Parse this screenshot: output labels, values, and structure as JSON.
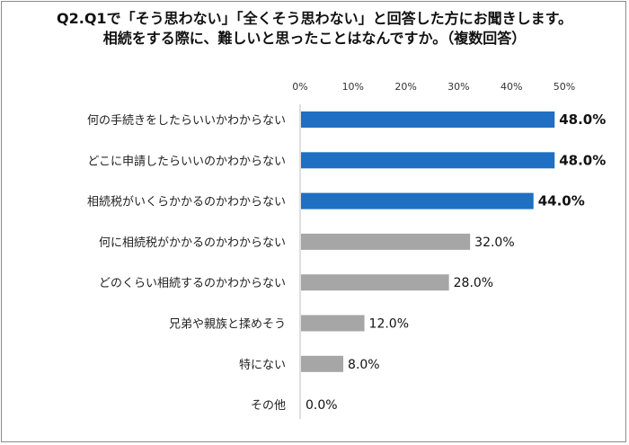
{
  "chart_data": {
    "type": "bar",
    "orientation": "horizontal",
    "title_line1": "Q2.Q1で「そう思わない」「全くそう思わない」と回答した方にお聞きします。",
    "title_line2": "相続をする際に、難しいと思ったことはなんですか。（複数回答）",
    "categories": [
      "何の手続きをしたらいいかわからない",
      "どこに申請したらいいのかわからない",
      "相続税がいくらかかるのかわからない",
      "何に相続税がかかるのかわからない",
      "どのくらい相続するのかわからない",
      "兄弟や親族と揉めそう",
      "特にない",
      "その他"
    ],
    "values": [
      48.0,
      48.0,
      44.0,
      32.0,
      28.0,
      12.0,
      8.0,
      0.0
    ],
    "value_labels": [
      "48.0%",
      "48.0%",
      "44.0%",
      "32.0%",
      "28.0%",
      "12.0%",
      "8.0%",
      "0.0%"
    ],
    "highlighted": [
      true,
      true,
      true,
      false,
      false,
      false,
      false,
      false
    ],
    "x_ticks": [
      0,
      10,
      20,
      30,
      40,
      50
    ],
    "x_tick_labels": [
      "0%",
      "10%",
      "20%",
      "30%",
      "40%",
      "50%"
    ],
    "xlim": [
      0,
      50
    ],
    "colors": {
      "highlight": "#1f6fc2",
      "normal": "#a6a6a6"
    }
  }
}
